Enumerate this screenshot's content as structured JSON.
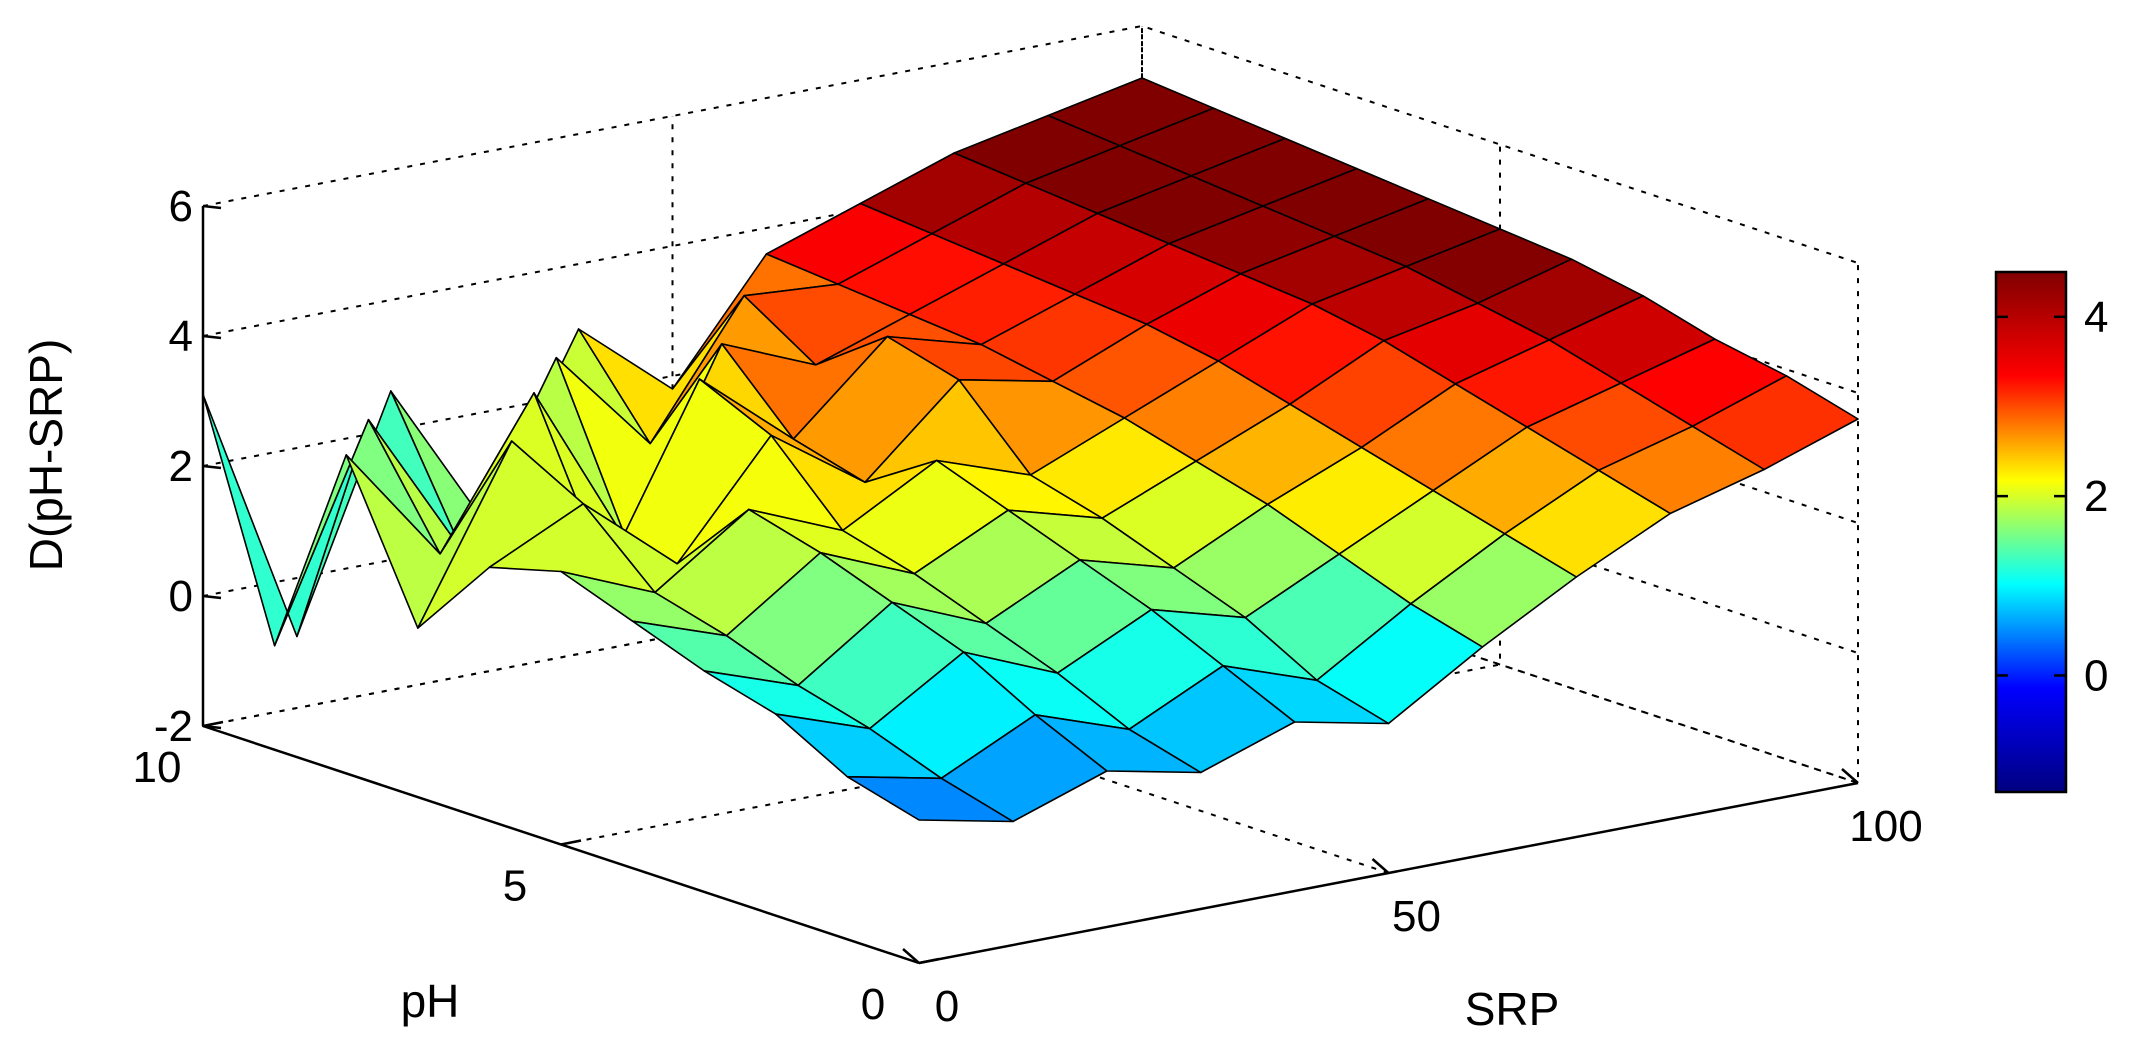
{
  "chart_data": {
    "type": "surface",
    "title": "",
    "xlabel": "SRP",
    "ylabel": "pH",
    "zlabel": "D(pH-SRP)",
    "xlim": [
      0,
      100
    ],
    "ylim": [
      0,
      10
    ],
    "zlim": [
      -2,
      6
    ],
    "x_ticks": [
      "0",
      "50",
      "100"
    ],
    "y_ticks": [
      "0",
      "5",
      "10"
    ],
    "z_ticks": [
      "-2",
      "0",
      "2",
      "4",
      "6"
    ],
    "grid": true,
    "colormap": "jet",
    "colorbar": {
      "placement": "right",
      "range": [
        -1.3,
        4.5
      ],
      "ticks": [
        "0",
        "2",
        "4"
      ],
      "colors": [
        "#000080",
        "#0000ff",
        "#00ffff",
        "#ffff00",
        "#ff0000",
        "#800000"
      ]
    },
    "x": [
      0,
      10,
      20,
      30,
      40,
      50,
      60,
      70,
      80,
      90,
      100
    ],
    "y": [
      0,
      1,
      2,
      3,
      4,
      5,
      6,
      7,
      8,
      9,
      10
    ],
    "z": [
      [
        0.2,
        -0.1,
        0.4,
        0.1,
        0.6,
        0.3,
        1.2,
        2.0,
        2.7,
        3.1,
        3.6
      ],
      [
        0.5,
        0.2,
        0.9,
        0.4,
        1.1,
        0.6,
        1.5,
        2.3,
        3.0,
        3.4,
        3.9
      ],
      [
        1.1,
        0.6,
        1.5,
        0.9,
        1.6,
        1.2,
        1.9,
        2.6,
        3.3,
        3.7,
        4.1
      ],
      [
        1.4,
        0.9,
        1.9,
        1.3,
        2.0,
        1.6,
        2.3,
        2.9,
        3.6,
        4.0,
        4.4
      ],
      [
        1.8,
        1.3,
        2.3,
        1.7,
        2.4,
        2.0,
        2.6,
        3.2,
        3.9,
        4.2,
        4.6
      ],
      [
        2.2,
        1.6,
        2.6,
        2.0,
        2.8,
        2.3,
        2.9,
        3.5,
        4.1,
        4.4,
        4.7
      ],
      [
        1.9,
        2.6,
        1.4,
        3.1,
        2.1,
        3.4,
        3.1,
        3.7,
        4.2,
        4.5,
        4.8
      ],
      [
        0.6,
        3.2,
        0.9,
        3.6,
        2.4,
        3.7,
        3.3,
        3.8,
        4.3,
        4.6,
        4.9
      ],
      [
        2.9,
        1.1,
        3.3,
        0.7,
        3.5,
        2.9,
        3.4,
        3.9,
        4.4,
        4.7,
        5.0
      ],
      [
        -0.4,
        2.8,
        0.5,
        3.2,
        1.6,
        3.6,
        3.5,
        4.0,
        4.5,
        4.8,
        5.1
      ],
      [
        3.1,
        -0.9,
        2.6,
        0.3,
        3.0,
        1.8,
        3.6,
        4.1,
        4.6,
        4.9,
        5.2
      ]
    ]
  }
}
